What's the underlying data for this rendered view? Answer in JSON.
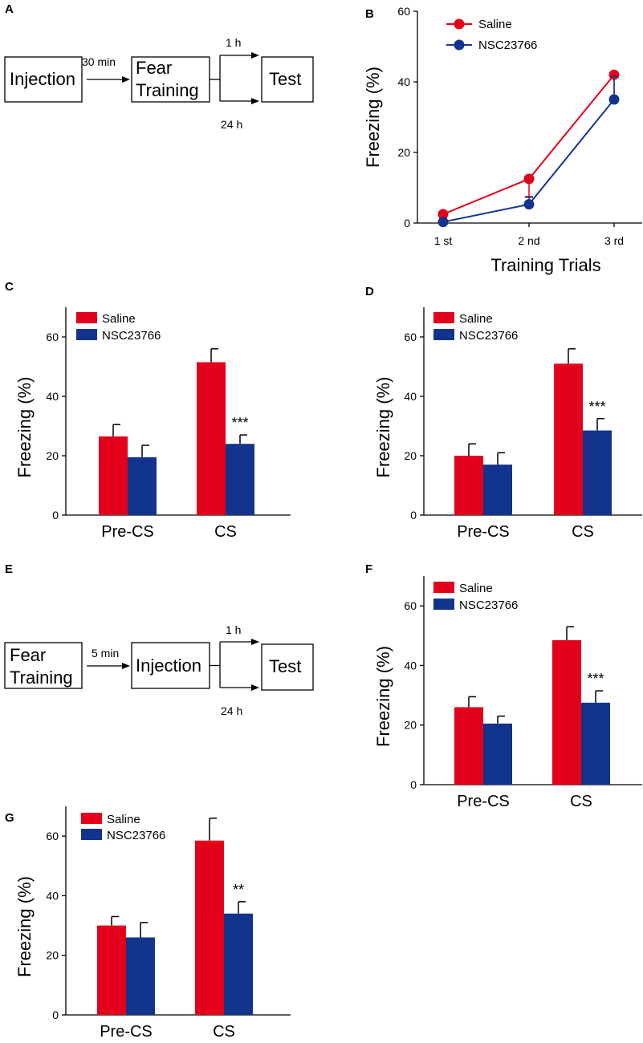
{
  "colors": {
    "saline": "#e3001b",
    "nsc": "#13348c",
    "axis": "#000000"
  },
  "schematics": [
    {
      "panel": "A",
      "box1": [
        "Injection"
      ],
      "interval": "30 min",
      "box2": [
        "Fear",
        "Training"
      ],
      "top_branch": "1 h",
      "bottom_branch": "24 h",
      "box3": [
        "Test"
      ]
    },
    {
      "panel": "E",
      "box1": [
        "Fear",
        "Training"
      ],
      "interval": "5 min",
      "box2": [
        "Injection"
      ],
      "top_branch": "1 h",
      "bottom_branch": "24 h",
      "box3": [
        "Test"
      ]
    }
  ],
  "chart_data": [
    {
      "panel": "B",
      "type": "line",
      "categories": [
        "1 st",
        "2 nd",
        "3 rd"
      ],
      "series": [
        {
          "name": "Saline",
          "values": [
            2.5,
            12.5,
            42
          ],
          "errors": [
            1.0,
            5.0,
            7.5
          ],
          "color": "#e3001b"
        },
        {
          "name": "NSC23766",
          "values": [
            0.3,
            5.3,
            35
          ],
          "errors": [
            0.5,
            2.0,
            6.5
          ],
          "color": "#13348c"
        }
      ],
      "xlabel": "Training Trials",
      "ylabel": "Freezing (%)",
      "ylim": [
        0,
        60
      ],
      "yticks": [
        "0",
        "20",
        "40",
        "60"
      ],
      "legend": "top-left"
    },
    {
      "panel": "C",
      "type": "bar",
      "categories": [
        "Pre-CS",
        "CS"
      ],
      "series": [
        {
          "name": "Saline",
          "values": [
            26.5,
            51.5
          ],
          "errors": [
            4.0,
            4.5
          ],
          "color": "#e3001b"
        },
        {
          "name": "NSC23766",
          "values": [
            19.5,
            24
          ],
          "errors": [
            4.0,
            3.0
          ],
          "color": "#13348c"
        }
      ],
      "significance": [
        "",
        "***"
      ],
      "ylabel": "Freezing (%)",
      "ylim": [
        0,
        70
      ],
      "yticks": [
        "0",
        "20",
        "40",
        "60"
      ],
      "legend": "top-left"
    },
    {
      "panel": "D",
      "type": "bar",
      "categories": [
        "Pre-CS",
        "CS"
      ],
      "series": [
        {
          "name": "Saline",
          "values": [
            20,
            51
          ],
          "errors": [
            4.0,
            5.0
          ],
          "color": "#e3001b"
        },
        {
          "name": "NSC23766",
          "values": [
            17,
            28.5
          ],
          "errors": [
            4.0,
            4.0
          ],
          "color": "#13348c"
        }
      ],
      "significance": [
        "",
        "***"
      ],
      "ylabel": "Freezing (%)",
      "ylim": [
        0,
        70
      ],
      "yticks": [
        "0",
        "20",
        "40",
        "60"
      ],
      "legend": "top-left"
    },
    {
      "panel": "F",
      "type": "bar",
      "categories": [
        "Pre-CS",
        "CS"
      ],
      "series": [
        {
          "name": "Saline",
          "values": [
            26,
            48.5
          ],
          "errors": [
            3.5,
            4.5
          ],
          "color": "#e3001b"
        },
        {
          "name": "NSC23766",
          "values": [
            20.5,
            27.5
          ],
          "errors": [
            2.5,
            4.0
          ],
          "color": "#13348c"
        }
      ],
      "significance": [
        "",
        "***"
      ],
      "ylabel": "Freezing (%)",
      "ylim": [
        0,
        70
      ],
      "yticks": [
        "0",
        "20",
        "40",
        "60"
      ],
      "legend": "top-left"
    },
    {
      "panel": "G",
      "type": "bar",
      "categories": [
        "Pre-CS",
        "CS"
      ],
      "series": [
        {
          "name": "Saline",
          "values": [
            30,
            58.5
          ],
          "errors": [
            3.0,
            7.5
          ],
          "color": "#e3001b"
        },
        {
          "name": "NSC23766",
          "values": [
            26,
            34
          ],
          "errors": [
            5.0,
            4.0
          ],
          "color": "#13348c"
        }
      ],
      "significance": [
        "",
        "**"
      ],
      "ylabel": "Freezing (%)",
      "ylim": [
        0,
        70
      ],
      "yticks": [
        "0",
        "20",
        "40",
        "60"
      ],
      "legend": "top-left"
    }
  ]
}
